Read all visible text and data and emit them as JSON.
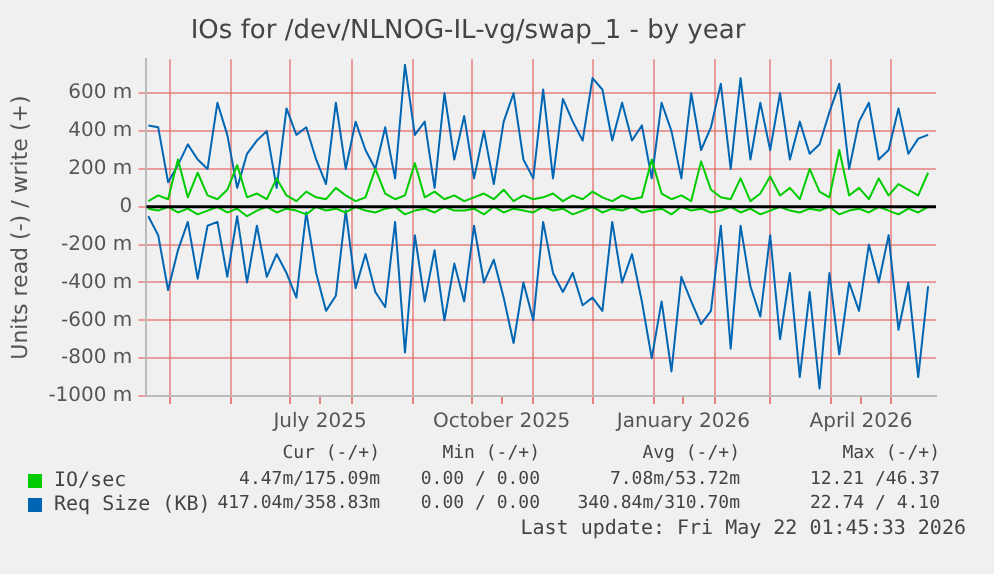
{
  "chart_data": {
    "type": "line",
    "title": "IOs for /dev/NLNOG-IL-vg/swap_1 - by year",
    "ylabel": "Units read (-) / write (+)",
    "x": [
      "2025-04-20",
      "2025-04-25",
      "2025-04-30",
      "2025-05-05",
      "2025-05-10",
      "2025-05-15",
      "2025-05-20",
      "2025-05-25",
      "2025-05-30",
      "2025-06-04",
      "2025-06-09",
      "2025-06-14",
      "2025-06-19",
      "2025-06-24",
      "2025-06-29",
      "2025-07-04",
      "2025-07-09",
      "2025-07-14",
      "2025-07-19",
      "2025-07-24",
      "2025-07-29",
      "2025-08-03",
      "2025-08-08",
      "2025-08-13",
      "2025-08-18",
      "2025-08-23",
      "2025-08-28",
      "2025-09-02",
      "2025-09-07",
      "2025-09-12",
      "2025-09-17",
      "2025-09-22",
      "2025-09-27",
      "2025-10-02",
      "2025-10-07",
      "2025-10-12",
      "2025-10-17",
      "2025-10-22",
      "2025-10-27",
      "2025-11-01",
      "2025-11-06",
      "2025-11-11",
      "2025-11-16",
      "2025-11-21",
      "2025-11-26",
      "2025-12-01",
      "2025-12-06",
      "2025-12-11",
      "2025-12-16",
      "2025-12-21",
      "2025-12-26",
      "2025-12-31",
      "2026-01-05",
      "2026-01-10",
      "2026-01-15",
      "2026-01-20",
      "2026-01-25",
      "2026-01-30",
      "2026-02-04",
      "2026-02-09",
      "2026-02-14",
      "2026-02-19",
      "2026-02-24",
      "2026-03-01",
      "2026-03-06",
      "2026-03-11",
      "2026-03-16",
      "2026-03-21",
      "2026-03-26",
      "2026-03-31",
      "2026-04-05",
      "2026-04-10",
      "2026-04-15",
      "2026-04-20",
      "2026-04-25",
      "2026-04-30",
      "2026-05-05",
      "2026-05-10",
      "2026-05-15",
      "2026-05-20"
    ],
    "series": [
      {
        "color": "#00cc00",
        "values": [
          -10,
          -20,
          0,
          -30,
          -10,
          -40,
          -20,
          0,
          -30,
          -10,
          -50,
          -20,
          0,
          -30,
          -10,
          -20,
          -40,
          0,
          -20,
          -10,
          -30,
          0,
          -20,
          -30,
          -10,
          0,
          -40,
          -20,
          -10,
          -30,
          0,
          -20,
          -20,
          -10,
          -40,
          0,
          -30,
          -10,
          -20,
          -30,
          0,
          -20,
          -10,
          -40,
          -20,
          0,
          -30,
          -10,
          -20,
          0,
          -30,
          -20,
          -10,
          -40,
          0,
          -20,
          -10,
          -30,
          -20,
          0,
          -30,
          -10,
          -40,
          -20,
          0,
          -20,
          -30,
          -10,
          -20,
          0,
          -40,
          -20,
          -10,
          -30,
          0,
          -20,
          -40,
          -10,
          -30,
          0
        ]
      },
      {
        "name": "IO/sec",
        "color": "#00cc00",
        "values": [
          30,
          60,
          40,
          250,
          50,
          180,
          60,
          40,
          90,
          220,
          50,
          70,
          40,
          150,
          60,
          30,
          80,
          50,
          40,
          100,
          60,
          30,
          50,
          200,
          70,
          40,
          60,
          230,
          50,
          80,
          40,
          60,
          30,
          50,
          70,
          40,
          90,
          30,
          60,
          40,
          50,
          70,
          30,
          60,
          40,
          80,
          50,
          30,
          60,
          40,
          50,
          250,
          70,
          40,
          60,
          30,
          240,
          90,
          50,
          40,
          150,
          30,
          70,
          160,
          60,
          100,
          40,
          200,
          80,
          50,
          300,
          60,
          100,
          40,
          150,
          60,
          120,
          90,
          60,
          180
        ]
      },
      {
        "color": "#0066b3",
        "values": [
          -50,
          -150,
          -440,
          -230,
          -80,
          -380,
          -100,
          -80,
          -370,
          -50,
          -400,
          -100,
          -370,
          -250,
          -350,
          -480,
          -30,
          -350,
          -550,
          -470,
          -20,
          -430,
          -250,
          -450,
          -530,
          -80,
          -770,
          -150,
          -500,
          -230,
          -600,
          -300,
          -500,
          -100,
          -400,
          -280,
          -480,
          -720,
          -400,
          -600,
          -80,
          -350,
          -450,
          -350,
          -520,
          -480,
          -550,
          -80,
          -400,
          -250,
          -500,
          -800,
          -500,
          -870,
          -370,
          -500,
          -620,
          -550,
          -100,
          -750,
          -100,
          -420,
          -580,
          -150,
          -700,
          -350,
          -900,
          -450,
          -960,
          -350,
          -780,
          -400,
          -550,
          -200,
          -400,
          -150,
          -650,
          -400,
          -900,
          -420
        ]
      },
      {
        "name": "Req Size (KB)",
        "color": "#0066b3",
        "values": [
          430,
          420,
          130,
          220,
          330,
          250,
          200,
          550,
          380,
          100,
          280,
          350,
          400,
          100,
          520,
          380,
          420,
          250,
          120,
          550,
          200,
          450,
          300,
          200,
          420,
          150,
          750,
          380,
          450,
          100,
          600,
          250,
          480,
          150,
          400,
          120,
          450,
          600,
          250,
          150,
          620,
          150,
          570,
          450,
          350,
          680,
          620,
          350,
          550,
          350,
          430,
          150,
          550,
          400,
          150,
          600,
          300,
          420,
          650,
          200,
          680,
          250,
          550,
          300,
          600,
          250,
          450,
          280,
          330,
          500,
          650,
          200,
          450,
          550,
          250,
          300,
          520,
          280,
          360,
          380
        ]
      }
    ],
    "ylim": [
      -1000,
      780
    ],
    "yticks": [
      {
        "value": -1000,
        "label": "-1000 m"
      },
      {
        "value": -800,
        "label": "-800 m"
      },
      {
        "value": -600,
        "label": "-600 m"
      },
      {
        "value": -400,
        "label": "-400 m"
      },
      {
        "value": -200,
        "label": "-200 m"
      },
      0,
      {
        "value": 200,
        "label": "200 m"
      },
      {
        "value": 400,
        "label": "400 m"
      },
      {
        "value": 600,
        "label": "600 m"
      }
    ],
    "xlim": [
      "2025-04-19",
      "2026-05-24"
    ],
    "xticks": [
      {
        "value": "2025-05-01",
        "label": null
      },
      {
        "value": "2025-06-01",
        "label": null
      },
      {
        "value": "2025-07-01",
        "label": null
      },
      {
        "value": "2025-07-16",
        "label": "July 2025"
      },
      {
        "value": "2025-08-01",
        "label": null
      },
      {
        "value": "2025-09-01",
        "label": null
      },
      {
        "value": "2025-10-01",
        "label": null
      },
      {
        "value": "2025-10-16",
        "label": "October 2025"
      },
      {
        "value": "2025-11-01",
        "label": null
      },
      {
        "value": "2025-12-01",
        "label": null
      },
      {
        "value": "2026-01-01",
        "label": null
      },
      {
        "value": "2026-01-16",
        "label": "January 2026"
      },
      {
        "value": "2026-02-01",
        "label": null
      },
      {
        "value": "2026-03-01",
        "label": null
      },
      {
        "value": "2026-04-01",
        "label": null
      },
      {
        "value": "2026-04-16",
        "label": "April 2026"
      },
      {
        "value": "2026-05-01",
        "label": null
      }
    ],
    "ref_lines": [
      {
        "axis": "y",
        "value": 0,
        "color": "#000000"
      }
    ],
    "grid": true,
    "legend": "bottom",
    "marker": "none",
    "line_style": "solid",
    "annotations": [
      "Cur (-/+)",
      "Min (-/+)",
      "Avg (-/+)",
      "Max (-/+)",
      "4.47m/175.09m",
      "0.00 / 0.00",
      "7.08m/53.72m",
      "12.21 /46.37",
      "417.04m/358.83m",
      "0.00 / 0.00",
      "340.84m/310.70m",
      "22.74 / 4.10",
      "Last update: Fri May 22 01:45:33 2026"
    ]
  }
}
